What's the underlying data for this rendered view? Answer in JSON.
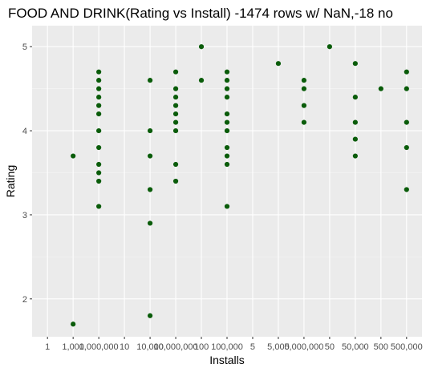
{
  "chart_data": {
    "type": "scatter",
    "title": "FOOD AND DRINK(Rating vs Install) -1474 rows w/ NaN,-18 no",
    "xlabel": "Installs",
    "ylabel": "Rating",
    "ylim": [
      1.55,
      5.25
    ],
    "yticks": [
      2,
      3,
      4,
      5
    ],
    "grid": true,
    "x_categories": [
      "1",
      "1,000",
      "1,000,000",
      "10",
      "10,000",
      "10,000,000",
      "100",
      "100,000",
      "5",
      "5,000",
      "5,000,000",
      "50",
      "50,000",
      "500",
      "500,000"
    ],
    "x_tick_labels": [
      "1",
      "1,000",
      "1,000,000",
      "10",
      "10,000",
      "10,000,000",
      "100",
      "100,000",
      "5",
      "5,000",
      "5,000,000",
      "50",
      "50,000",
      "500",
      "500,000"
    ],
    "point_color": "#0a5c0a",
    "points": [
      {
        "x": "1,000",
        "y": 3.7
      },
      {
        "x": "1,000",
        "y": 1.7
      },
      {
        "x": "1,000,000",
        "y": 4.7
      },
      {
        "x": "1,000,000",
        "y": 4.6
      },
      {
        "x": "1,000,000",
        "y": 4.5
      },
      {
        "x": "1,000,000",
        "y": 4.4
      },
      {
        "x": "1,000,000",
        "y": 4.3
      },
      {
        "x": "1,000,000",
        "y": 4.2
      },
      {
        "x": "1,000,000",
        "y": 4.0
      },
      {
        "x": "1,000,000",
        "y": 3.8
      },
      {
        "x": "1,000,000",
        "y": 3.6
      },
      {
        "x": "1,000,000",
        "y": 3.5
      },
      {
        "x": "1,000,000",
        "y": 3.4
      },
      {
        "x": "1,000,000",
        "y": 3.1
      },
      {
        "x": "10,000",
        "y": 4.6
      },
      {
        "x": "10,000",
        "y": 4.0
      },
      {
        "x": "10,000",
        "y": 3.7
      },
      {
        "x": "10,000",
        "y": 3.3
      },
      {
        "x": "10,000",
        "y": 2.9
      },
      {
        "x": "10,000",
        "y": 1.8
      },
      {
        "x": "10,000,000",
        "y": 4.7
      },
      {
        "x": "10,000,000",
        "y": 4.5
      },
      {
        "x": "10,000,000",
        "y": 4.4
      },
      {
        "x": "10,000,000",
        "y": 4.3
      },
      {
        "x": "10,000,000",
        "y": 4.2
      },
      {
        "x": "10,000,000",
        "y": 4.1
      },
      {
        "x": "10,000,000",
        "y": 4.0
      },
      {
        "x": "10,000,000",
        "y": 3.6
      },
      {
        "x": "10,000,000",
        "y": 3.4
      },
      {
        "x": "100",
        "y": 5.0
      },
      {
        "x": "100",
        "y": 4.6
      },
      {
        "x": "100,000",
        "y": 4.7
      },
      {
        "x": "100,000",
        "y": 4.6
      },
      {
        "x": "100,000",
        "y": 4.5
      },
      {
        "x": "100,000",
        "y": 4.4
      },
      {
        "x": "100,000",
        "y": 4.2
      },
      {
        "x": "100,000",
        "y": 4.1
      },
      {
        "x": "100,000",
        "y": 4.0
      },
      {
        "x": "100,000",
        "y": 3.8
      },
      {
        "x": "100,000",
        "y": 3.7
      },
      {
        "x": "100,000",
        "y": 3.6
      },
      {
        "x": "100,000",
        "y": 3.1
      },
      {
        "x": "5,000",
        "y": 4.8
      },
      {
        "x": "5,000,000",
        "y": 4.6
      },
      {
        "x": "5,000,000",
        "y": 4.5
      },
      {
        "x": "5,000,000",
        "y": 4.3
      },
      {
        "x": "5,000,000",
        "y": 4.1
      },
      {
        "x": "50",
        "y": 5.0
      },
      {
        "x": "50,000",
        "y": 4.8
      },
      {
        "x": "50,000",
        "y": 4.4
      },
      {
        "x": "50,000",
        "y": 4.1
      },
      {
        "x": "50,000",
        "y": 3.9
      },
      {
        "x": "50,000",
        "y": 3.7
      },
      {
        "x": "500",
        "y": 4.5
      },
      {
        "x": "500,000",
        "y": 4.7
      },
      {
        "x": "500,000",
        "y": 4.5
      },
      {
        "x": "500,000",
        "y": 4.1
      },
      {
        "x": "500,000",
        "y": 3.8
      },
      {
        "x": "500,000",
        "y": 3.3
      }
    ]
  }
}
